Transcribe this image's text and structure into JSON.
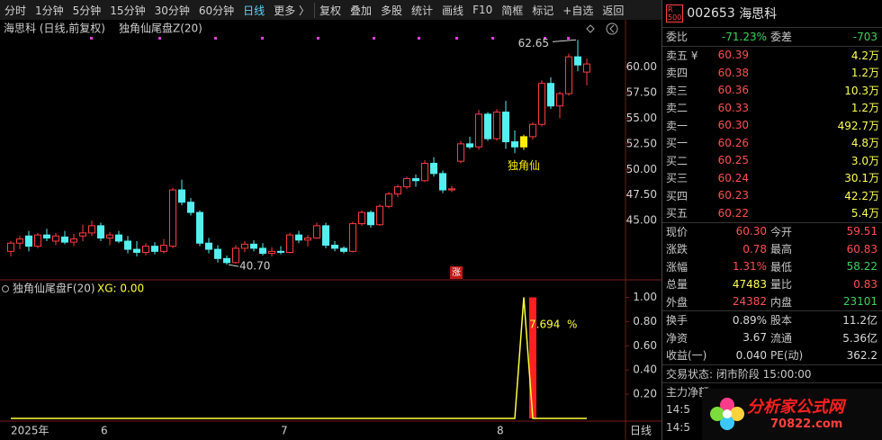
{
  "toolbar": {
    "left": [
      "分时",
      "1分钟",
      "5分钟",
      "15分钟",
      "30分钟",
      "60分钟",
      "日线",
      "更多 〉"
    ],
    "right": [
      "复权",
      "叠加",
      "多股",
      "统计",
      "画线",
      "F10",
      "简框",
      "标记",
      "+自选",
      "返回"
    ]
  },
  "chart_title": "海思科 (日线,前复权)",
  "indicator_main": "独角仙尾盘Z(20)",
  "kline": {
    "type": "candlestick",
    "open": [
      42.0,
      42.8,
      43.5,
      42.5,
      43.6,
      43.0,
      43.4,
      42.9,
      43.5,
      43.8,
      44.5,
      43.3,
      43.6,
      43.0,
      42.2,
      41.9,
      42.5,
      42.0,
      42.5,
      48.0,
      46.8,
      45.8,
      42.8,
      42.2,
      41.3,
      40.9,
      42.3,
      42.7,
      42.3,
      41.8,
      42.0,
      41.9,
      43.6,
      43.1,
      43.3,
      44.5,
      42.6,
      42.3,
      42.0,
      44.7,
      45.8,
      44.6,
      46.4,
      47.6,
      48.3,
      49.1,
      48.9,
      50.6,
      49.6,
      48.0,
      50.8,
      52.5,
      52.2,
      55.4,
      53.0,
      55.6,
      52.7,
      52.2,
      53.2,
      54.4,
      58.4,
      56.2,
      57.4,
      61.0,
      59.51
    ],
    "high": [
      43.0,
      43.5,
      44.0,
      43.8,
      44.2,
      43.8,
      44.0,
      43.7,
      44.6,
      45.0,
      44.8,
      43.9,
      44.0,
      43.5,
      43.0,
      42.8,
      42.9,
      43.2,
      48.2,
      49.0,
      47.2,
      46.0,
      43.3,
      42.6,
      41.6,
      42.6,
      43.0,
      43.1,
      42.8,
      42.4,
      42.5,
      43.8,
      44.0,
      43.6,
      44.8,
      44.8,
      43.0,
      42.5,
      44.9,
      46.0,
      46.0,
      46.6,
      47.8,
      48.5,
      49.3,
      49.5,
      50.9,
      51.2,
      49.9,
      48.4,
      52.8,
      53.2,
      55.8,
      55.6,
      55.9,
      56.7,
      53.8,
      53.4,
      54.6,
      58.7,
      59.0,
      57.6,
      61.3,
      62.65,
      60.83
    ],
    "low": [
      41.5,
      42.2,
      42.0,
      42.3,
      43.0,
      42.6,
      42.7,
      42.5,
      43.0,
      43.5,
      43.0,
      42.6,
      42.8,
      41.8,
      41.5,
      41.6,
      41.7,
      41.8,
      42.3,
      46.5,
      45.5,
      42.5,
      41.8,
      40.9,
      40.7,
      40.8,
      41.9,
      42.0,
      41.6,
      41.5,
      41.7,
      41.8,
      42.8,
      42.5,
      43.2,
      42.3,
      42.0,
      41.8,
      41.9,
      44.5,
      44.3,
      44.5,
      46.2,
      47.3,
      48.1,
      48.3,
      48.8,
      49.3,
      47.7,
      47.8,
      50.6,
      52.0,
      51.9,
      52.8,
      52.8,
      52.0,
      51.6,
      51.9,
      52.9,
      54.2,
      55.9,
      55.0,
      57.2,
      59.6,
      58.22
    ],
    "close": [
      42.8,
      43.2,
      42.5,
      43.6,
      43.3,
      43.5,
      42.9,
      43.2,
      43.8,
      44.5,
      43.3,
      43.6,
      43.0,
      42.2,
      41.9,
      42.5,
      42.0,
      42.6,
      48.0,
      46.8,
      45.8,
      42.8,
      42.2,
      41.3,
      40.9,
      42.3,
      42.7,
      42.3,
      41.8,
      42.0,
      41.9,
      43.6,
      43.1,
      43.3,
      44.5,
      42.6,
      42.3,
      42.0,
      44.7,
      45.8,
      44.6,
      46.4,
      47.6,
      48.3,
      49.1,
      48.9,
      50.6,
      49.6,
      48.0,
      48.1,
      52.5,
      52.2,
      55.4,
      53.0,
      55.6,
      52.7,
      52.2,
      53.2,
      54.4,
      58.4,
      56.2,
      57.4,
      61.0,
      60.2,
      60.3
    ],
    "ylim": [
      39.7,
      64
    ],
    "yticks": [
      {
        "value": 45,
        "label": "45.00"
      },
      {
        "value": 47.5,
        "label": "47.50"
      },
      {
        "value": 50,
        "label": "50.00"
      },
      {
        "value": 52.5,
        "label": "52.50"
      },
      {
        "value": 55,
        "label": "55.00"
      },
      {
        "value": 57.5,
        "label": "57.50"
      },
      {
        "value": 60,
        "label": "60.00"
      }
    ],
    "up_color": "#ff3c3c",
    "down_color": "#54f0f0",
    "signal": {
      "index": 57,
      "color": "#ffee00",
      "label": "独角仙"
    },
    "high_mark": {
      "value": 62.65,
      "index": 63
    },
    "low_mark": {
      "value": 40.7,
      "label": "40.70",
      "index": 24
    },
    "badge": "涨"
  },
  "indicator": {
    "type": "line",
    "title": "独角仙尾盘F(20)",
    "xg": "XG: 0.00",
    "ylim": [
      0,
      1.13
    ],
    "yticks": [
      {
        "value": 0.2,
        "label": "0.20"
      },
      {
        "value": 0.4,
        "label": "0.40"
      },
      {
        "value": 0.6,
        "label": "0.60"
      },
      {
        "value": 0.8,
        "label": "0.80"
      },
      {
        "value": 1,
        "label": "1.00"
      }
    ],
    "line_color": "#ffff3c",
    "bar_color": "#ff2020",
    "line_values": [
      0,
      0,
      0,
      0,
      0,
      0,
      0,
      0,
      0,
      0,
      0,
      0,
      0,
      0,
      0,
      0,
      0,
      0,
      0,
      0,
      0,
      0,
      0,
      0,
      0,
      0,
      0,
      0,
      0,
      0,
      0,
      0,
      0,
      0,
      0,
      0,
      0,
      0,
      0,
      0,
      0,
      0,
      0,
      0,
      0,
      0,
      0,
      0,
      0,
      0,
      0,
      0,
      0,
      0,
      0,
      0,
      0,
      1,
      0,
      0,
      0,
      0,
      0,
      0,
      0
    ],
    "bar_values": [
      0,
      0,
      0,
      0,
      0,
      0,
      0,
      0,
      0,
      0,
      0,
      0,
      0,
      0,
      0,
      0,
      0,
      0,
      0,
      0,
      0,
      0,
      0,
      0,
      0,
      0,
      0,
      0,
      0,
      0,
      0,
      0,
      0,
      0,
      0,
      0,
      0,
      0,
      0,
      0,
      0,
      0,
      0,
      0,
      0,
      0,
      0,
      0,
      0,
      0,
      0,
      0,
      0,
      0,
      0,
      0,
      0,
      0,
      1,
      0,
      0,
      0,
      0,
      0,
      0
    ],
    "pct_value": "7.694",
    "pct_unit": "%"
  },
  "xaxis": {
    "labels": [
      {
        "label": "2025年",
        "index": 0
      },
      {
        "label": "6",
        "index": 10
      },
      {
        "label": "7",
        "index": 30
      },
      {
        "label": "8",
        "index": 54
      }
    ],
    "period": "日线"
  },
  "panel": {
    "badge_top": "R",
    "badge_bottom": "500",
    "code": "002653",
    "name": "海思科",
    "ratio": [
      "委比",
      "-71.23%",
      "委差",
      "-703"
    ],
    "book": [
      [
        "卖五 ¥",
        "60.39",
        "4.2万"
      ],
      [
        "卖四",
        "60.38",
        "1.2万"
      ],
      [
        "卖三",
        "60.36",
        "10.3万"
      ],
      [
        "卖二",
        "60.33",
        "1.2万"
      ],
      [
        "卖一",
        "60.30",
        "492.7万"
      ],
      [
        "买一",
        "60.26",
        "4.8万"
      ],
      [
        "买二",
        "60.25",
        "3.0万"
      ],
      [
        "买三",
        "60.24",
        "30.1万"
      ],
      [
        "买四",
        "60.23",
        "42.2万"
      ],
      [
        "买五",
        "60.22",
        "5.4万"
      ]
    ],
    "quote": [
      [
        "现价",
        "60.30",
        "今开",
        "59.51"
      ],
      [
        "涨跌",
        "0.78",
        "最高",
        "60.83"
      ],
      [
        "涨幅",
        "1.31%",
        "最低",
        "58.22"
      ],
      [
        "总量",
        "47483",
        "量比",
        "0.83"
      ],
      [
        "外盘",
        "24382",
        "内盘",
        "23101"
      ]
    ],
    "finance": [
      [
        "换手",
        "0.89%",
        "股本",
        "11.2亿"
      ],
      [
        "净资",
        "3.67",
        "流通",
        "5.36亿"
      ],
      [
        "收益(一)",
        "0.040",
        "PE(动)",
        "362.2"
      ]
    ],
    "status": "交易状态: 闭市阶段 15:00:00",
    "main_flow": "主力净额",
    "time1": "14:5",
    "time2": "14:5"
  },
  "watermark": {
    "title": "分析家公式网",
    "url": "70822.com"
  }
}
